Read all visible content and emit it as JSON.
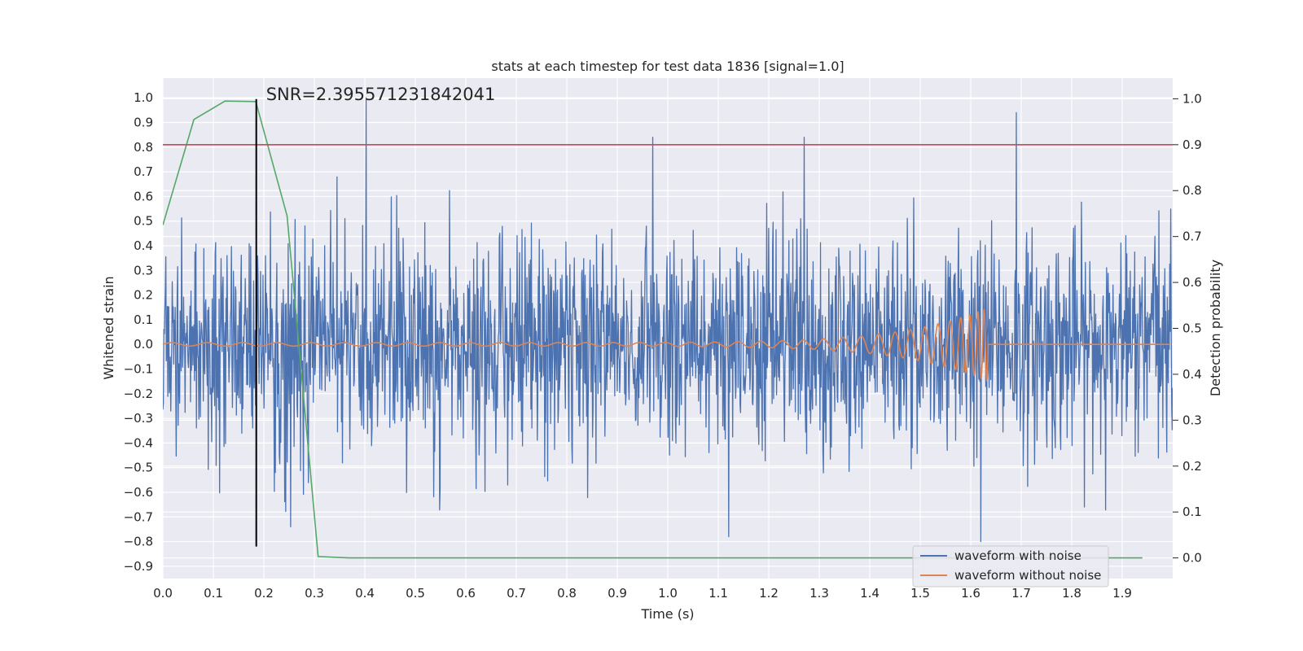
{
  "chart_data": {
    "type": "line",
    "title": "stats at each timestep for test data 1836 [signal=1.0]",
    "xlabel": "Time (s)",
    "ylabel_left": "Whitened strain",
    "ylabel_right": "Detection probability",
    "xlim": [
      0.0,
      2.0
    ],
    "ylim_left": [
      -0.95,
      1.08
    ],
    "ylim_right": [
      -0.045,
      1.045
    ],
    "xticks": [
      "0.0",
      "0.1",
      "0.2",
      "0.3",
      "0.4",
      "0.5",
      "0.6",
      "0.7",
      "0.8",
      "0.9",
      "1.0",
      "1.1",
      "1.2",
      "1.3",
      "1.4",
      "1.5",
      "1.6",
      "1.7",
      "1.8",
      "1.9"
    ],
    "yticks_left": [
      "1.0",
      "0.9",
      "0.8",
      "0.7",
      "0.6",
      "0.5",
      "0.4",
      "0.3",
      "0.2",
      "0.1",
      "0.0",
      "−0.1",
      "−0.2",
      "−0.3",
      "−0.4",
      "−0.5",
      "−0.6",
      "−0.7",
      "−0.8",
      "−0.9"
    ],
    "yticks_right": [
      "1.0",
      "0.9",
      "0.8",
      "0.7",
      "0.6",
      "0.5",
      "0.4",
      "0.3",
      "0.2",
      "0.1",
      "0.0"
    ],
    "grid": true,
    "annotation": {
      "text": "SNR=2.395571231842041",
      "x": 0.185
    },
    "threshold": {
      "axis": "right",
      "value": 0.9,
      "color": "#c44e52"
    },
    "marker_line": {
      "x": 0.185,
      "y_from": -0.82,
      "y_to": 0.995,
      "color": "#000000"
    },
    "series": [
      {
        "name": "waveform with noise",
        "axis": "left",
        "color": "#4c72b0",
        "kind": "noise",
        "n_points": 2048,
        "sd": 0.22,
        "peaks": [
          {
            "x": 0.403,
            "y": 1.0
          },
          {
            "x": 0.97,
            "y": 0.84
          },
          {
            "x": 1.27,
            "y": 0.84
          },
          {
            "x": 1.69,
            "y": 0.94
          },
          {
            "x": 1.121,
            "y": -0.78
          },
          {
            "x": 1.62,
            "y": -0.8
          },
          {
            "x": 0.253,
            "y": -0.74
          }
        ]
      },
      {
        "name": "waveform without noise",
        "axis": "left",
        "color": "#dd8452",
        "kind": "chirp",
        "merger_time": 1.635,
        "start_freq": 14,
        "end_freq": 90,
        "start_amp": 0.007,
        "peak_amp": 0.15
      },
      {
        "name": "detection probability",
        "axis": "right",
        "color": "#55a868",
        "kind": "line",
        "x": [
          0.0,
          0.0615,
          0.123,
          0.184,
          0.246,
          0.3075,
          0.369,
          0.5,
          0.75,
          1.0,
          1.25,
          1.5,
          1.75,
          1.94
        ],
        "y": [
          0.725,
          0.955,
          0.995,
          0.994,
          0.745,
          0.003,
          0.0,
          0.0,
          0.0,
          0.0,
          0.0,
          0.0,
          0.0,
          0.0
        ]
      }
    ],
    "legend": {
      "location": "lower-right",
      "entries": [
        {
          "label": "waveform with noise",
          "color": "#4c72b0"
        },
        {
          "label": "waveform without noise",
          "color": "#dd8452"
        }
      ]
    }
  }
}
